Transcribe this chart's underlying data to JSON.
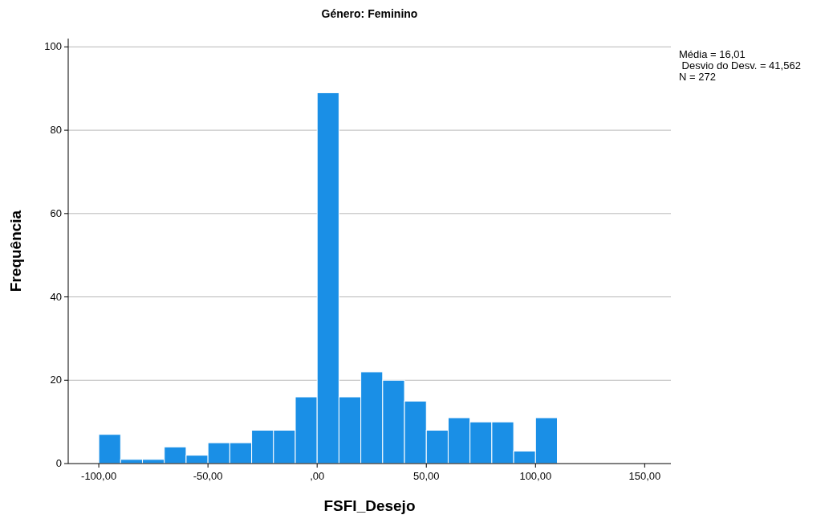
{
  "chart_data": {
    "type": "histogram",
    "title": "Género: Feminino",
    "xlabel": "FSFI_Desejo",
    "ylabel": "Frequência",
    "bins": [
      -100,
      -90,
      -80,
      -70,
      -60,
      -50,
      -40,
      -30,
      -20,
      -10,
      0,
      10,
      20,
      30,
      40,
      50,
      60,
      70,
      80,
      90,
      100,
      110
    ],
    "values": [
      7,
      1,
      1,
      4,
      2,
      5,
      5,
      8,
      8,
      16,
      89,
      16,
      22,
      20,
      15,
      8,
      11,
      10,
      10,
      3,
      11
    ],
    "color": "#1a8fe6",
    "xlim": [
      -114,
      162
    ],
    "xticks": [
      {
        "value": -100,
        "label": "-100,00"
      },
      {
        "value": -50,
        "label": "-50,00"
      },
      {
        "value": 0,
        "label": ",00"
      },
      {
        "value": 50,
        "label": "50,00"
      },
      {
        "value": 100,
        "label": "100,00"
      },
      {
        "value": 150,
        "label": "150,00"
      }
    ],
    "ylim": [
      0,
      102
    ],
    "yticks": [
      0,
      20,
      40,
      60,
      80,
      100
    ],
    "grid": "y",
    "annotations": [
      "Média = 16,01",
      " Desvio do Desv. = 41,562",
      "N = 272"
    ]
  }
}
